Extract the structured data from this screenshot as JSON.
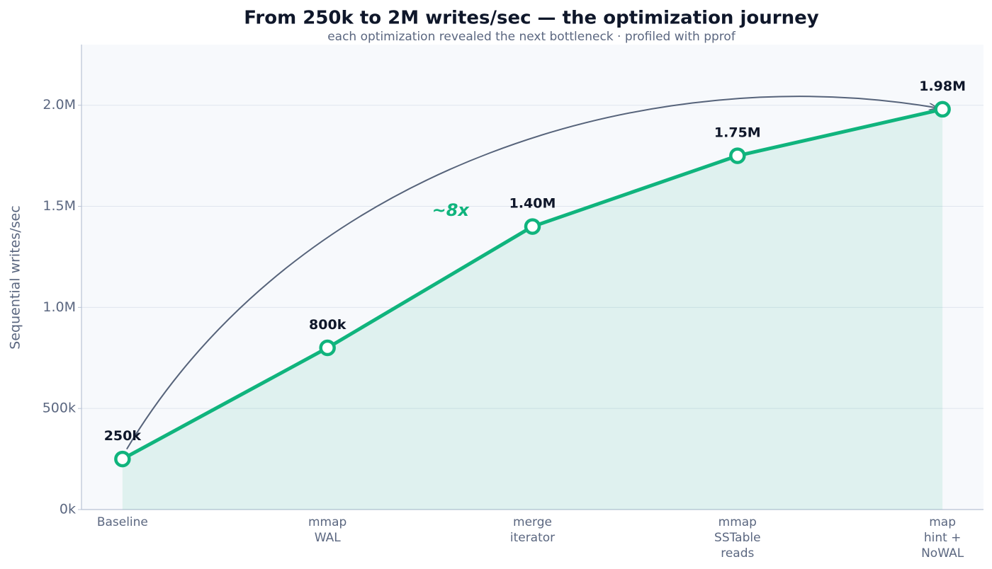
{
  "chart_data": {
    "type": "line",
    "title": "From 250k to 2M writes/sec — the optimization journey",
    "subtitle": "each optimization revealed the next bottleneck · profiled with pprof",
    "y_label": "Sequential writes/sec",
    "annotation": "~8x",
    "categories": [
      [
        "Baseline"
      ],
      [
        "mmap",
        "WAL"
      ],
      [
        "merge",
        "iterator"
      ],
      [
        "mmap",
        "SSTable",
        "reads"
      ],
      [
        "map",
        "hint +",
        "NoWAL"
      ]
    ],
    "series": [
      {
        "name": "writes/sec",
        "color": "#10b47d",
        "values": [
          250000,
          800000,
          1400000,
          1750000,
          1980000
        ],
        "value_labels": [
          "250k",
          "800k",
          "1.40M",
          "1.75M",
          "1.98M"
        ]
      }
    ],
    "ylim": [
      0,
      2300000
    ],
    "yticks": [
      {
        "value": 0,
        "label": "0k"
      },
      {
        "value": 500000,
        "label": "500k"
      },
      {
        "value": 1000000,
        "label": "1.0M"
      },
      {
        "value": 1500000,
        "label": "1.5M"
      },
      {
        "value": 2000000,
        "label": "2.0M"
      }
    ],
    "grid": true
  }
}
